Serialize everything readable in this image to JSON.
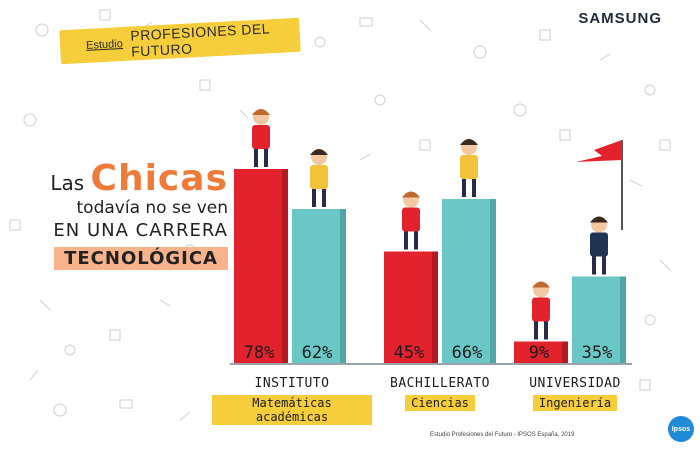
{
  "brand": "SAMSUNG",
  "banner": {
    "prefix": "Estudio",
    "title": "PROFESIONES DEL FUTURO"
  },
  "headline": {
    "line1a": "Las",
    "line1b": "Chicas",
    "line2": "todavía no se ven",
    "line3": "EN UNA CARRERA",
    "line4": "TECNOLÓGICA"
  },
  "colors": {
    "girls": "#e2232d",
    "boys": "#6bc7c5",
    "accent": "#f6cd3b",
    "orange": "#ef7b3b"
  },
  "chart_data": {
    "type": "bar",
    "categories": [
      "INSTITUTO",
      "BACHILLERATO",
      "UNIVERSIDAD"
    ],
    "subcategories": [
      "Matemáticas académicas",
      "Ciencias",
      "Ingeniería"
    ],
    "series": [
      {
        "values": [
          78,
          45,
          9
        ],
        "labels": [
          "78%",
          "45%",
          "9%"
        ]
      },
      {
        "values": [
          62,
          66,
          35
        ],
        "labels": [
          "62%",
          "66%",
          "35%"
        ]
      }
    ],
    "ylim": [
      0,
      100
    ]
  },
  "footer": {
    "source": "Estudio Profesiones del Futuro - IPSOS España, 2019",
    "ipsos": "Ipsos"
  }
}
